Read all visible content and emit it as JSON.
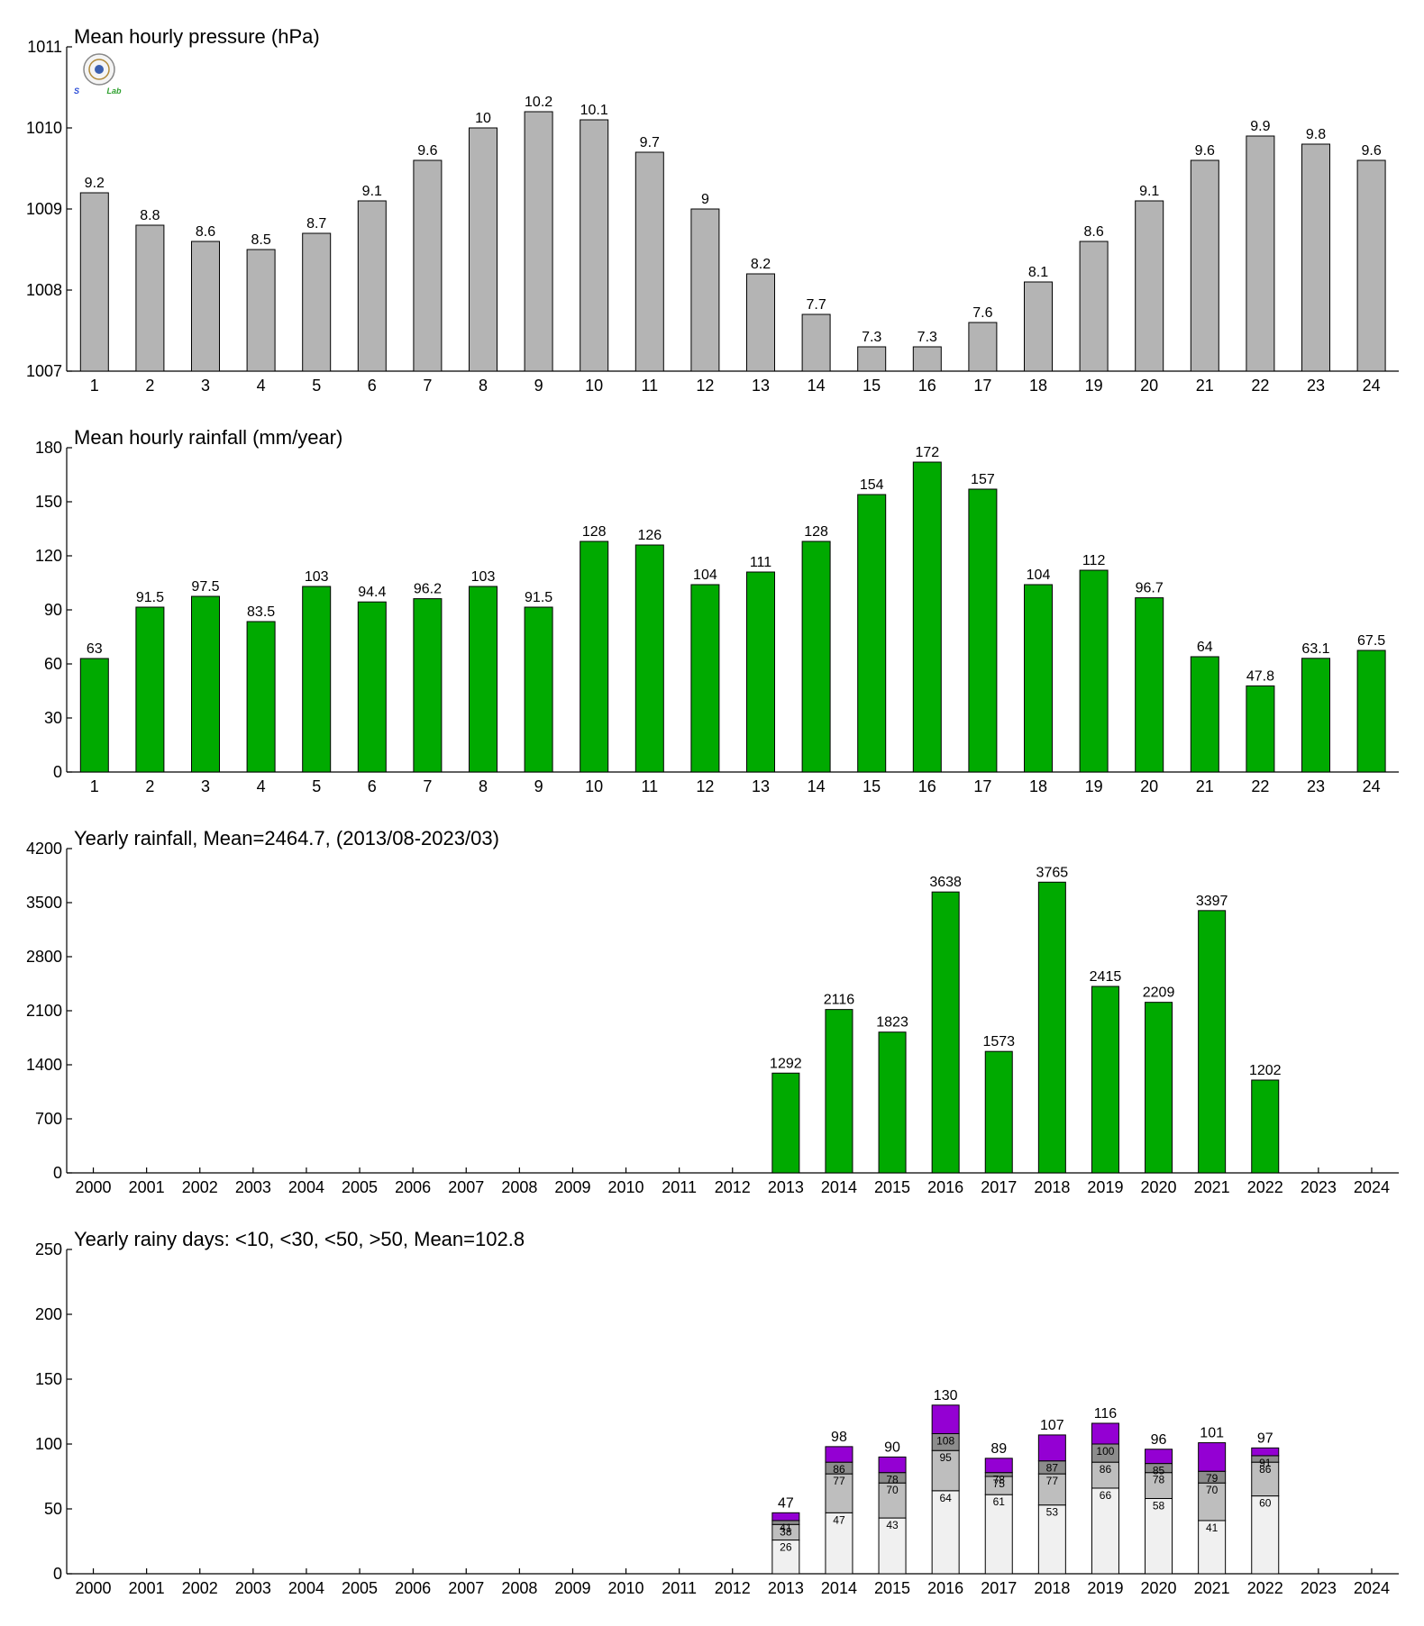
{
  "colors": {
    "gray_bar": "#b4b4b4",
    "green_bar": "#00aa00",
    "rainy_lt10": "#f0f0f0",
    "rainy_lt30": "#bebebe",
    "rainy_lt50": "#8c8c8c",
    "rainy_gt50": "#9400d3",
    "logo_s": "#2a4bd6",
    "logo_lab": "#2ea02e"
  },
  "logo": {
    "text_s": "S",
    "text_lab": "Lab"
  },
  "chart_data": [
    {
      "id": "pressure",
      "type": "bar",
      "title": "Mean hourly pressure (hPa)",
      "categories": [
        "1",
        "2",
        "3",
        "4",
        "5",
        "6",
        "7",
        "8",
        "9",
        "10",
        "11",
        "12",
        "13",
        "14",
        "15",
        "16",
        "17",
        "18",
        "19",
        "20",
        "21",
        "22",
        "23",
        "24"
      ],
      "values": [
        1009.2,
        1008.8,
        1008.6,
        1008.5,
        1008.7,
        1009.1,
        1009.6,
        1010.0,
        1010.2,
        1010.1,
        1009.7,
        1009.0,
        1008.2,
        1007.7,
        1007.3,
        1007.3,
        1007.6,
        1008.1,
        1008.6,
        1009.1,
        1009.6,
        1009.9,
        1009.8,
        1009.6
      ],
      "labels": [
        "9.2",
        "8.8",
        "8.6",
        "8.5",
        "8.7",
        "9.1",
        "9.6",
        "10",
        "10.2",
        "10.1",
        "9.7",
        "9",
        "8.2",
        "7.7",
        "7.3",
        "7.3",
        "7.6",
        "8.1",
        "8.6",
        "9.1",
        "9.6",
        "9.9",
        "9.8",
        "9.6"
      ],
      "ylim": [
        1007,
        1011
      ],
      "yticks": [
        1007,
        1008,
        1009,
        1010,
        1011
      ],
      "color": "#b4b4b4"
    },
    {
      "id": "hourly_rain",
      "type": "bar",
      "title": "Mean hourly rainfall (mm/year)",
      "categories": [
        "1",
        "2",
        "3",
        "4",
        "5",
        "6",
        "7",
        "8",
        "9",
        "10",
        "11",
        "12",
        "13",
        "14",
        "15",
        "16",
        "17",
        "18",
        "19",
        "20",
        "21",
        "22",
        "23",
        "24"
      ],
      "values": [
        63,
        91.5,
        97.5,
        83.5,
        103,
        94.4,
        96.2,
        103,
        91.5,
        128,
        126,
        104,
        111,
        128,
        154,
        172,
        157,
        104,
        112,
        96.7,
        64,
        47.8,
        63.1,
        67.5
      ],
      "labels": [
        "63",
        "91.5",
        "97.5",
        "83.5",
        "103",
        "94.4",
        "96.2",
        "103",
        "91.5",
        "128",
        "126",
        "104",
        "111",
        "128",
        "154",
        "172",
        "157",
        "104",
        "112",
        "96.7",
        "64",
        "47.8",
        "63.1",
        "67.5"
      ],
      "ylim": [
        0,
        180
      ],
      "yticks": [
        0,
        30,
        60,
        90,
        120,
        150,
        180
      ],
      "color": "#00aa00"
    },
    {
      "id": "yearly_rain",
      "type": "bar",
      "title": "Yearly rainfall, Mean=2464.7, (2013/08-2023/03)",
      "categories": [
        "2000",
        "2001",
        "2002",
        "2003",
        "2004",
        "2005",
        "2006",
        "2007",
        "2008",
        "2009",
        "2010",
        "2011",
        "2012",
        "2013",
        "2014",
        "2015",
        "2016",
        "2017",
        "2018",
        "2019",
        "2020",
        "2021",
        "2022",
        "2023",
        "2024"
      ],
      "values": [
        null,
        null,
        null,
        null,
        null,
        null,
        null,
        null,
        null,
        null,
        null,
        null,
        null,
        1292,
        2116,
        1823,
        3638,
        1573,
        3765,
        2415,
        2209,
        3397,
        1202,
        null,
        null
      ],
      "labels": [
        "",
        "",
        "",
        "",
        "",
        "",
        "",
        "",
        "",
        "",
        "",
        "",
        "",
        "1292",
        "2116",
        "1823",
        "3638",
        "1573",
        "3765",
        "2415",
        "2209",
        "3397",
        "1202",
        "",
        ""
      ],
      "ylim": [
        0,
        4200
      ],
      "yticks": [
        0,
        700,
        1400,
        2100,
        2800,
        3500,
        4200
      ],
      "color": "#00aa00"
    },
    {
      "id": "rainy_days",
      "type": "bar",
      "stacked": true,
      "title": "Yearly rainy days: <10, <30, <50, >50, Mean=102.8",
      "categories": [
        "2000",
        "2001",
        "2002",
        "2003",
        "2004",
        "2005",
        "2006",
        "2007",
        "2008",
        "2009",
        "2010",
        "2011",
        "2012",
        "2013",
        "2014",
        "2015",
        "2016",
        "2017",
        "2018",
        "2019",
        "2020",
        "2021",
        "2022",
        "2023",
        "2024"
      ],
      "cumulative": {
        "lt10": [
          null,
          null,
          null,
          null,
          null,
          null,
          null,
          null,
          null,
          null,
          null,
          null,
          null,
          26,
          47,
          43,
          64,
          61,
          53,
          66,
          58,
          41,
          60,
          null,
          null
        ],
        "lt30": [
          null,
          null,
          null,
          null,
          null,
          null,
          null,
          null,
          null,
          null,
          null,
          null,
          null,
          38,
          77,
          70,
          95,
          75,
          77,
          86,
          78,
          70,
          86,
          null,
          null
        ],
        "lt50": [
          null,
          null,
          null,
          null,
          null,
          null,
          null,
          null,
          null,
          null,
          null,
          null,
          null,
          41,
          86,
          78,
          108,
          78,
          87,
          100,
          85,
          79,
          91,
          null,
          null
        ],
        "total": [
          null,
          null,
          null,
          null,
          null,
          null,
          null,
          null,
          null,
          null,
          null,
          null,
          null,
          47,
          98,
          90,
          130,
          89,
          107,
          116,
          96,
          101,
          97,
          null,
          null
        ]
      },
      "ylim": [
        0,
        250
      ],
      "yticks": [
        0,
        50,
        100,
        150,
        200,
        250
      ]
    }
  ]
}
